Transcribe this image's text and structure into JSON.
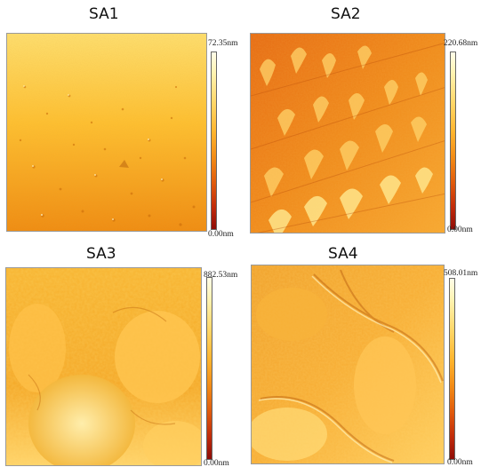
{
  "panels": [
    {
      "title": "SA1",
      "max_label": "72.35nm",
      "min_label": "0.00nm"
    },
    {
      "title": "SA2",
      "max_label": "220.68nm",
      "min_label": "0.00nm"
    },
    {
      "title": "SA3",
      "max_label": "882.53nm",
      "min_label": "0.00nm"
    },
    {
      "title": "SA4",
      "max_label": "508.01nm",
      "min_label": "0.00nm"
    }
  ]
}
